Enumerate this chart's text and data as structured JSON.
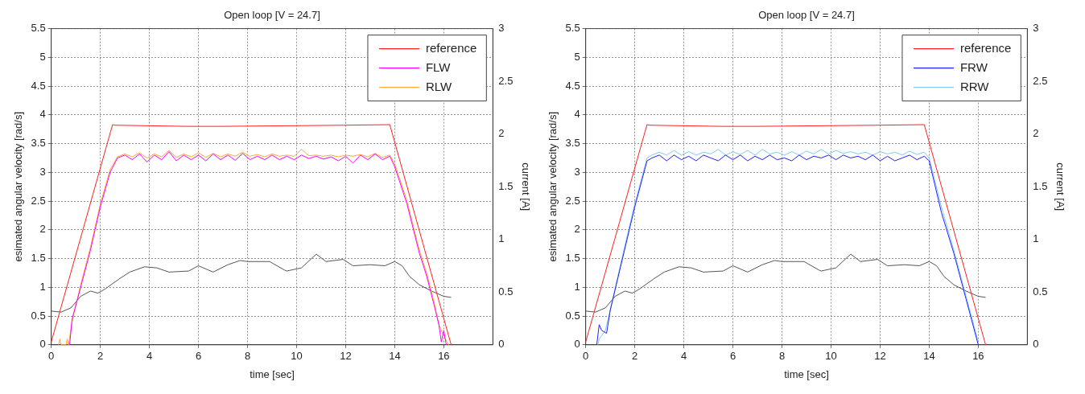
{
  "chart_data": [
    {
      "type": "line",
      "title": "Open loop [V = 24.7]",
      "xlabel": "time [sec]",
      "ylabel": "esimated angular velocity [rad/s]",
      "y2label": "current [A]",
      "xlim": [
        0,
        18
      ],
      "xticks": [
        0,
        2,
        4,
        6,
        8,
        10,
        12,
        14,
        16
      ],
      "ylim": [
        0,
        5.5
      ],
      "yticks": [
        0,
        0.5,
        1,
        1.5,
        2,
        2.5,
        3,
        3.5,
        4,
        4.5,
        5,
        5.5
      ],
      "y2lim": [
        0,
        3
      ],
      "y2ticks": [
        0,
        0.5,
        1,
        1.5,
        2,
        2.5,
        3
      ],
      "grid": true,
      "legend": "top right",
      "line_style": "solid",
      "marker": "none",
      "series": [
        {
          "name": "reference",
          "color": "#ff2020",
          "x": [
            0,
            2.5,
            2.6,
            5.5,
            7,
            12,
            13.8,
            16.3
          ],
          "values": [
            0.05,
            3.83,
            3.82,
            3.8,
            3.8,
            3.82,
            3.83,
            0
          ]
        },
        {
          "name": "FLW",
          "color": "#ff00ff",
          "x": [
            0.75,
            0.85,
            1.2,
            1.6,
            2.0,
            2.4,
            2.7,
            3.0,
            3.3,
            3.6,
            3.9,
            4.2,
            4.5,
            4.8,
            5.1,
            5.4,
            5.7,
            6.0,
            6.3,
            6.6,
            6.9,
            7.2,
            7.5,
            7.8,
            8.1,
            8.4,
            8.7,
            9.0,
            9.3,
            9.6,
            9.9,
            10.2,
            10.5,
            10.8,
            11.1,
            11.4,
            11.7,
            12.0,
            12.3,
            12.6,
            12.9,
            13.2,
            13.5,
            13.8,
            14.0,
            14.5,
            15.0,
            15.3,
            15.6,
            15.8,
            15.9,
            16.0,
            16.1
          ],
          "values": [
            0,
            0.45,
            1.0,
            1.65,
            2.4,
            3.0,
            3.25,
            3.3,
            3.22,
            3.32,
            3.18,
            3.3,
            3.22,
            3.36,
            3.2,
            3.3,
            3.22,
            3.3,
            3.2,
            3.32,
            3.22,
            3.3,
            3.21,
            3.33,
            3.22,
            3.28,
            3.22,
            3.3,
            3.22,
            3.28,
            3.22,
            3.3,
            3.24,
            3.28,
            3.23,
            3.27,
            3.2,
            3.28,
            3.16,
            3.3,
            3.22,
            3.32,
            3.22,
            3.28,
            3.1,
            2.45,
            1.6,
            1.2,
            0.7,
            0.35,
            0.05,
            0.25,
            0
          ]
        },
        {
          "name": "RLW",
          "color": "#ffaa33",
          "x": [
            0.3,
            0.35,
            0.4,
            0.6,
            0.65,
            0.7,
            0.85,
            1.2,
            1.6,
            2.0,
            2.4,
            2.7,
            3.0,
            3.3,
            3.6,
            3.9,
            4.2,
            4.5,
            4.8,
            5.1,
            5.4,
            5.7,
            6.0,
            6.3,
            6.6,
            6.9,
            7.2,
            7.5,
            7.8,
            8.1,
            8.4,
            8.7,
            9.0,
            9.3,
            9.6,
            9.9,
            10.2,
            10.5,
            10.8,
            11.1,
            11.4,
            11.7,
            12.0,
            12.3,
            12.6,
            12.9,
            13.2,
            13.5,
            13.8,
            14.0,
            14.5,
            15.0,
            15.3,
            15.6,
            15.8,
            16.0,
            16.2
          ],
          "values": [
            0,
            0.1,
            0,
            0,
            0.1,
            0,
            0.4,
            1.05,
            1.7,
            2.45,
            3.05,
            3.27,
            3.32,
            3.27,
            3.34,
            3.25,
            3.32,
            3.27,
            3.38,
            3.26,
            3.32,
            3.27,
            3.34,
            3.26,
            3.33,
            3.27,
            3.32,
            3.28,
            3.35,
            3.28,
            3.31,
            3.27,
            3.32,
            3.28,
            3.3,
            3.28,
            3.4,
            3.29,
            3.3,
            3.28,
            3.3,
            3.27,
            3.3,
            3.28,
            3.31,
            3.27,
            3.33,
            3.26,
            3.3,
            3.15,
            2.5,
            1.65,
            1.25,
            0.75,
            0.35,
            0.15,
            0
          ]
        },
        {
          "color": "#555555",
          "axis": "y2",
          "x": [
            0,
            0.4,
            0.8,
            1.2,
            1.6,
            1.9,
            2.2,
            2.8,
            3.2,
            3.8,
            4.3,
            4.8,
            5.6,
            6.0,
            6.6,
            7.2,
            7.7,
            8.0,
            8.9,
            9.5,
            9.6,
            10.2,
            10.8,
            11.2,
            11.9,
            12.3,
            13.0,
            13.6,
            14.0,
            14.3,
            14.6,
            15.0,
            15.5,
            16.0,
            16.3
          ],
          "values": [
            0.32,
            0.31,
            0.35,
            0.46,
            0.51,
            0.49,
            0.53,
            0.63,
            0.69,
            0.74,
            0.73,
            0.69,
            0.7,
            0.75,
            0.69,
            0.76,
            0.8,
            0.79,
            0.79,
            0.71,
            0.7,
            0.73,
            0.86,
            0.79,
            0.81,
            0.75,
            0.76,
            0.75,
            0.79,
            0.75,
            0.65,
            0.57,
            0.51,
            0.46,
            0.45
          ]
        }
      ]
    },
    {
      "type": "line",
      "title": "Open loop [V = 24.7]",
      "xlabel": "time [sec]",
      "ylabel": "esimated angular velocity [rad/s]",
      "y2label": "current [A]",
      "xlim": [
        0,
        18
      ],
      "xticks": [
        0,
        2,
        4,
        6,
        8,
        10,
        12,
        14,
        16
      ],
      "ylim": [
        0,
        5.5
      ],
      "yticks": [
        0,
        0.5,
        1,
        1.5,
        2,
        2.5,
        3,
        3.5,
        4,
        4.5,
        5,
        5.5
      ],
      "y2lim": [
        0,
        3
      ],
      "y2ticks": [
        0,
        0.5,
        1,
        1.5,
        2,
        2.5,
        3
      ],
      "grid": true,
      "legend": "top right",
      "line_style": "solid",
      "marker": "none",
      "series": [
        {
          "name": "reference",
          "color": "#ff2020",
          "x": [
            0,
            2.5,
            2.6,
            5.5,
            7,
            12,
            13.8,
            16.3
          ],
          "values": [
            0.05,
            3.83,
            3.82,
            3.8,
            3.8,
            3.82,
            3.83,
            0
          ]
        },
        {
          "name": "FRW",
          "color": "#2020ff",
          "x": [
            0.45,
            0.55,
            0.65,
            0.85,
            1.0,
            1.5,
            2.0,
            2.5,
            2.7,
            3.0,
            3.3,
            3.6,
            3.9,
            4.2,
            4.5,
            4.8,
            5.1,
            5.4,
            5.7,
            6.0,
            6.3,
            6.6,
            6.9,
            7.2,
            7.5,
            7.8,
            8.1,
            8.4,
            8.7,
            9.0,
            9.3,
            9.6,
            9.9,
            10.2,
            10.5,
            10.8,
            11.1,
            11.4,
            11.7,
            12.0,
            12.3,
            12.6,
            12.9,
            13.2,
            13.5,
            13.8,
            14.0,
            14.5,
            15.0,
            15.5,
            16.0
          ],
          "values": [
            0,
            0.35,
            0.25,
            0.2,
            0.6,
            1.5,
            2.4,
            3.2,
            3.25,
            3.3,
            3.2,
            3.3,
            3.22,
            3.28,
            3.2,
            3.3,
            3.25,
            3.2,
            3.3,
            3.22,
            3.3,
            3.2,
            3.28,
            3.22,
            3.3,
            3.22,
            3.25,
            3.2,
            3.3,
            3.22,
            3.28,
            3.25,
            3.3,
            3.22,
            3.3,
            3.25,
            3.28,
            3.22,
            3.3,
            3.2,
            3.28,
            3.2,
            3.25,
            3.3,
            3.22,
            3.28,
            3.2,
            2.3,
            1.6,
            0.8,
            0
          ]
        },
        {
          "name": "RRW",
          "color": "#80ccf0",
          "x": [
            0.5,
            0.55,
            0.8,
            1.0,
            1.5,
            2.0,
            2.5,
            2.7,
            3.0,
            3.3,
            3.6,
            3.9,
            4.2,
            4.5,
            4.8,
            5.1,
            5.4,
            5.7,
            6.0,
            6.3,
            6.6,
            6.9,
            7.2,
            7.5,
            7.8,
            8.1,
            8.4,
            8.7,
            9.0,
            9.3,
            9.6,
            9.9,
            10.2,
            10.5,
            10.8,
            11.1,
            11.4,
            11.7,
            12.0,
            12.3,
            12.6,
            12.9,
            13.2,
            13.5,
            13.8,
            14.0,
            14.5,
            15.0,
            15.5,
            16.0
          ],
          "values": [
            0,
            0.1,
            0.25,
            0.6,
            1.55,
            2.45,
            3.25,
            3.3,
            3.35,
            3.3,
            3.38,
            3.3,
            3.36,
            3.3,
            3.35,
            3.32,
            3.4,
            3.3,
            3.36,
            3.31,
            3.38,
            3.3,
            3.4,
            3.32,
            3.35,
            3.3,
            3.36,
            3.3,
            3.37,
            3.32,
            3.4,
            3.32,
            3.38,
            3.33,
            3.36,
            3.32,
            3.35,
            3.3,
            3.36,
            3.32,
            3.35,
            3.3,
            3.37,
            3.31,
            3.35,
            3.25,
            2.4,
            1.65,
            0.85,
            0.05
          ]
        },
        {
          "color": "#555555",
          "axis": "y2",
          "x": [
            0,
            0.4,
            0.8,
            1.2,
            1.6,
            1.9,
            2.2,
            2.8,
            3.2,
            3.8,
            4.3,
            4.8,
            5.6,
            6.0,
            6.6,
            7.2,
            7.7,
            8.0,
            8.9,
            9.5,
            9.6,
            10.2,
            10.8,
            11.2,
            11.9,
            12.3,
            13.0,
            13.6,
            14.0,
            14.3,
            14.6,
            15.0,
            15.5,
            16.0,
            16.3
          ],
          "values": [
            0.32,
            0.31,
            0.35,
            0.46,
            0.51,
            0.49,
            0.53,
            0.63,
            0.69,
            0.74,
            0.73,
            0.69,
            0.7,
            0.75,
            0.69,
            0.76,
            0.8,
            0.79,
            0.79,
            0.71,
            0.7,
            0.73,
            0.86,
            0.79,
            0.81,
            0.75,
            0.76,
            0.75,
            0.79,
            0.75,
            0.65,
            0.57,
            0.51,
            0.46,
            0.45
          ]
        }
      ]
    }
  ]
}
